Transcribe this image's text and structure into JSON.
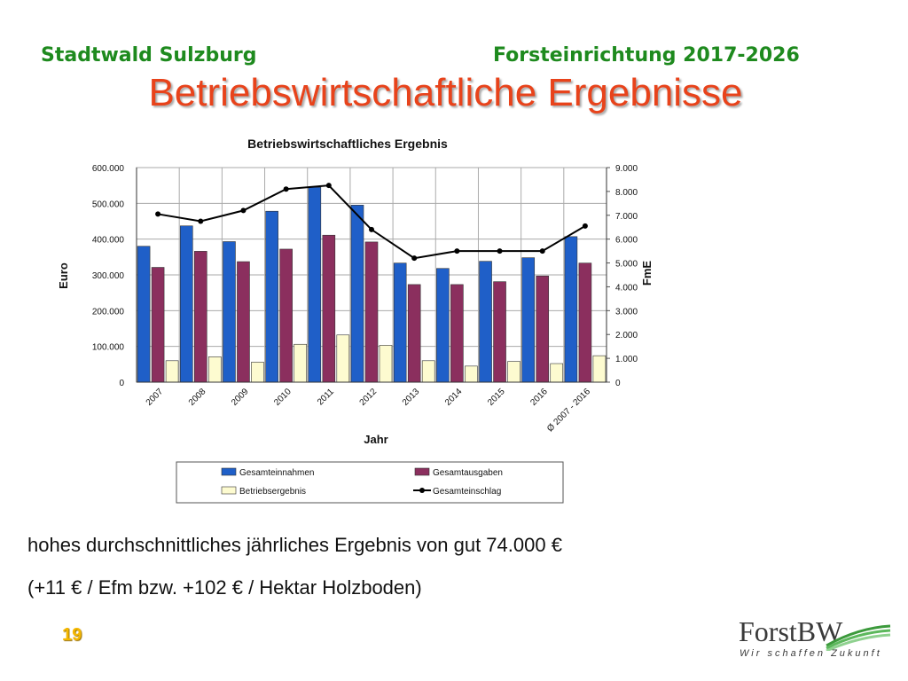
{
  "header": {
    "left": "Stadtwald Sulzburg",
    "right": "Forsteinrichtung 2017-2026",
    "title": "Betriebswirtschaftliche Ergebnisse"
  },
  "text": {
    "line1": "hohes durchschnittliches jährliches Ergebnis von gut 74.000 €",
    "line2": "(+11 € / Efm bzw. +102 € / Hektar Holzboden)"
  },
  "page_number": "19",
  "logo": {
    "name": "ForstBW",
    "tagline": "Wir schaffen Zukunft"
  },
  "colors": {
    "header": "#1e8a1e",
    "title": "#e8431b",
    "einnahmen": "#1f5fc8",
    "ausgaben": "#8b2f5e",
    "ergebnis": "#fdfbd0",
    "einschlag": "#000000",
    "page_number": "#f5b800"
  },
  "chart_data": {
    "type": "bar",
    "title": "Betriebswirtschaftliches Ergebnis",
    "xlabel": "Jahr",
    "ylabel": "Euro",
    "y2label": "FmE",
    "categories": [
      "2007",
      "2008",
      "2009",
      "2010",
      "2011",
      "2012",
      "2013",
      "2014",
      "2015",
      "2016",
      "Ø 2007 - 2016"
    ],
    "ylim": [
      0,
      600000
    ],
    "y2lim": [
      0,
      9000
    ],
    "yticks": [
      "0",
      "100.000",
      "200.000",
      "300.000",
      "400.000",
      "500.000",
      "600.000"
    ],
    "y2ticks": [
      "0",
      "1.000",
      "2.000",
      "3.000",
      "4.000",
      "5.000",
      "6.000",
      "7.000",
      "8.000",
      "9.000"
    ],
    "grid": true,
    "legend_position": "bottom",
    "series": [
      {
        "name": "Gesamteinnahmen",
        "kind": "bar",
        "axis": "left",
        "values": [
          380000,
          437000,
          393000,
          478000,
          545000,
          495000,
          333000,
          318000,
          338000,
          348000,
          407000
        ]
      },
      {
        "name": "Gesamtausgaben",
        "kind": "bar",
        "axis": "left",
        "values": [
          321000,
          366000,
          337000,
          372000,
          411000,
          392000,
          273000,
          273000,
          281000,
          297000,
          333000
        ]
      },
      {
        "name": "Betriebsergebnis",
        "kind": "bar",
        "axis": "left",
        "values": [
          60000,
          71000,
          56000,
          106000,
          132000,
          103000,
          60000,
          45000,
          58000,
          52000,
          74000
        ]
      },
      {
        "name": "Gesamteinschlag",
        "kind": "line",
        "axis": "right",
        "values": [
          7050,
          6750,
          7200,
          8100,
          8250,
          6400,
          5200,
          5500,
          5500,
          5500,
          6550
        ]
      }
    ]
  }
}
